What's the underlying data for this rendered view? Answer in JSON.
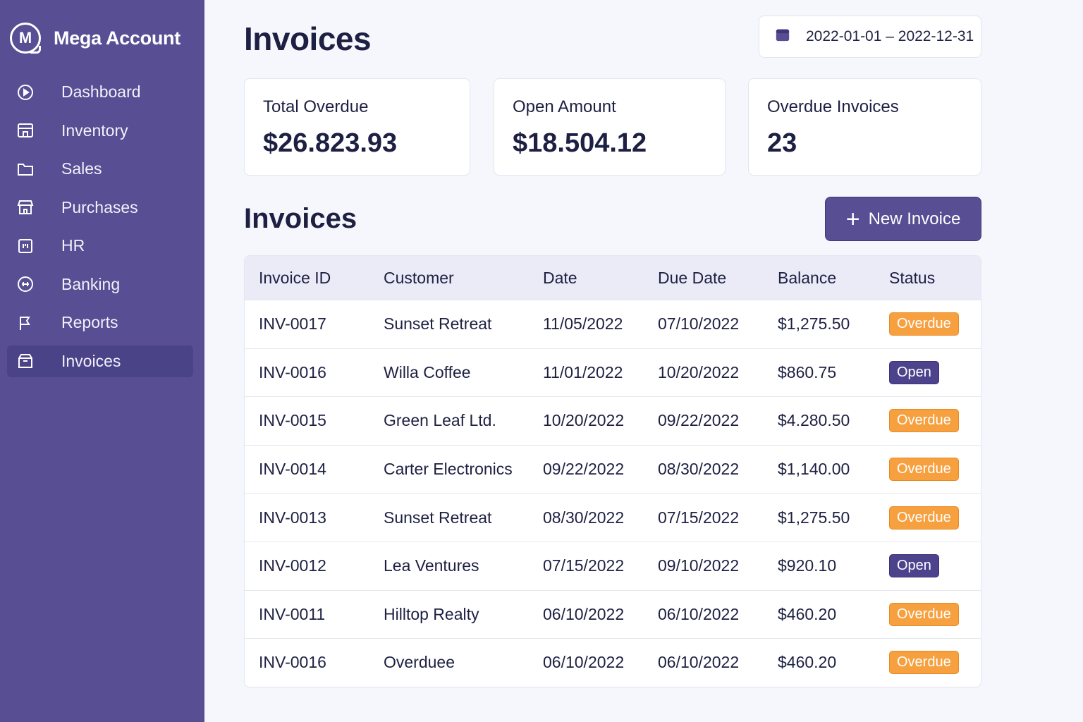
{
  "app": {
    "brand_letter": "M",
    "name": "Mega Account"
  },
  "sidebar": {
    "items": [
      {
        "label": "Dashboard",
        "icon": "play-circle-icon"
      },
      {
        "label": "Inventory",
        "icon": "store-icon"
      },
      {
        "label": "Sales",
        "icon": "folder-icon"
      },
      {
        "label": "Purchases",
        "icon": "shop-icon"
      },
      {
        "label": "HR",
        "icon": "id-card-icon"
      },
      {
        "label": "Banking",
        "icon": "bank-icon"
      },
      {
        "label": "Reports",
        "icon": "flag-icon"
      },
      {
        "label": "Invoices",
        "icon": "box-icon",
        "active": true
      }
    ]
  },
  "header": {
    "title": "Invoices",
    "date_range": "2022-01-01 – 2022-12-31"
  },
  "cards": [
    {
      "label": "Total Overdue",
      "value": "$26.823.93"
    },
    {
      "label": "Open Amount",
      "value": "$18.504.12"
    },
    {
      "label": "Overdue Invoices",
      "value": "23"
    }
  ],
  "section": {
    "title": "Invoices",
    "new_button": "New Invoice"
  },
  "table": {
    "columns": [
      "Invoice ID",
      "Customer",
      "Date",
      "Due Date",
      "Balance",
      "Status"
    ],
    "rows": [
      {
        "id": "INV-0017",
        "customer": "Sunset Retreat",
        "date": "11/05/2022",
        "due": "07/10/2022",
        "balance": "$1,275.50",
        "status": "Overdue"
      },
      {
        "id": "INV-0016",
        "customer": "Willa Coffee",
        "date": "11/01/2022",
        "due": "10/20/2022",
        "balance": "$860.75",
        "status": "Open"
      },
      {
        "id": "INV-0015",
        "customer": "Green Leaf Ltd.",
        "date": "10/20/2022",
        "due": "09/22/2022",
        "balance": "$4.280.50",
        "status": "Overdue"
      },
      {
        "id": "INV-0014",
        "customer": "Carter Electronics",
        "date": "09/22/2022",
        "due": "08/30/2022",
        "balance": "$1,140.00",
        "status": "Overdue"
      },
      {
        "id": "INV-0013",
        "customer": "Sunset Retreat",
        "date": "08/30/2022",
        "due": "07/15/2022",
        "balance": "$1,275.50",
        "status": "Overdue"
      },
      {
        "id": "INV-0012",
        "customer": "Lea Ventures",
        "date": "07/15/2022",
        "due": "09/10/2022",
        "balance": "$920.10",
        "status": "Open"
      },
      {
        "id": "INV-0011",
        "customer": "Hilltop Realty",
        "date": "06/10/2022",
        "due": "06/10/2022",
        "balance": "$460.20",
        "status": "Overdue"
      },
      {
        "id": "INV-0016",
        "customer": "Overduee",
        "date": "06/10/2022",
        "due": "06/10/2022",
        "balance": "$460.20",
        "status": "Overdue"
      }
    ]
  },
  "colors": {
    "sidebar": "#574e93",
    "overdue": "#f6a040",
    "open": "#4d438c"
  }
}
